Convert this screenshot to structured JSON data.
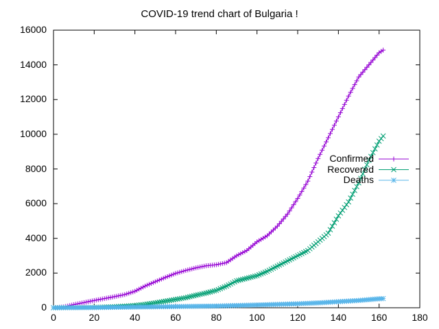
{
  "chart_data": {
    "type": "line",
    "title": "COVID-19 trend chart of Bulgaria !",
    "xlabel": "",
    "ylabel": "",
    "xlim": [
      0,
      180
    ],
    "ylim": [
      0,
      16000
    ],
    "xticks": [
      "0",
      "20",
      "40",
      "60",
      "80",
      "100",
      "120",
      "140",
      "160",
      "180"
    ],
    "yticks": [
      "0",
      "2000",
      "4000",
      "6000",
      "8000",
      "10000",
      "12000",
      "14000",
      "16000"
    ],
    "grid": false,
    "legend_position": "right",
    "series": [
      {
        "name": "Confirmed",
        "color": "#9400d3",
        "marker": "plus",
        "points": [
          [
            0,
            0
          ],
          [
            5,
            50
          ],
          [
            10,
            180
          ],
          [
            15,
            300
          ],
          [
            20,
            420
          ],
          [
            25,
            530
          ],
          [
            30,
            640
          ],
          [
            35,
            760
          ],
          [
            40,
            950
          ],
          [
            45,
            1250
          ],
          [
            50,
            1500
          ],
          [
            55,
            1750
          ],
          [
            60,
            1980
          ],
          [
            65,
            2150
          ],
          [
            70,
            2300
          ],
          [
            75,
            2420
          ],
          [
            80,
            2480
          ],
          [
            85,
            2600
          ],
          [
            90,
            3000
          ],
          [
            95,
            3300
          ],
          [
            100,
            3800
          ],
          [
            105,
            4150
          ],
          [
            110,
            4700
          ],
          [
            115,
            5400
          ],
          [
            120,
            6300
          ],
          [
            125,
            7300
          ],
          [
            130,
            8600
          ],
          [
            135,
            9800
          ],
          [
            140,
            11000
          ],
          [
            145,
            12200
          ],
          [
            150,
            13300
          ],
          [
            155,
            14000
          ],
          [
            160,
            14700
          ],
          [
            162,
            14850
          ]
        ]
      },
      {
        "name": "Recovered",
        "color": "#009e73",
        "marker": "cross",
        "points": [
          [
            0,
            0
          ],
          [
            20,
            20
          ],
          [
            30,
            60
          ],
          [
            40,
            130
          ],
          [
            45,
            200
          ],
          [
            50,
            280
          ],
          [
            55,
            380
          ],
          [
            60,
            480
          ],
          [
            65,
            580
          ],
          [
            70,
            720
          ],
          [
            75,
            850
          ],
          [
            80,
            1000
          ],
          [
            85,
            1250
          ],
          [
            90,
            1550
          ],
          [
            95,
            1700
          ],
          [
            100,
            1850
          ],
          [
            105,
            2100
          ],
          [
            110,
            2400
          ],
          [
            115,
            2700
          ],
          [
            120,
            3000
          ],
          [
            125,
            3300
          ],
          [
            130,
            3800
          ],
          [
            135,
            4300
          ],
          [
            140,
            5300
          ],
          [
            145,
            6100
          ],
          [
            150,
            7200
          ],
          [
            155,
            8500
          ],
          [
            160,
            9600
          ],
          [
            162,
            9900
          ]
        ]
      },
      {
        "name": "Deaths",
        "color": "#56b4e9",
        "marker": "star",
        "points": [
          [
            0,
            0
          ],
          [
            20,
            10
          ],
          [
            40,
            40
          ],
          [
            60,
            70
          ],
          [
            80,
            100
          ],
          [
            100,
            160
          ],
          [
            120,
            230
          ],
          [
            130,
            280
          ],
          [
            140,
            350
          ],
          [
            150,
            420
          ],
          [
            160,
            520
          ],
          [
            162,
            530
          ]
        ]
      }
    ]
  }
}
